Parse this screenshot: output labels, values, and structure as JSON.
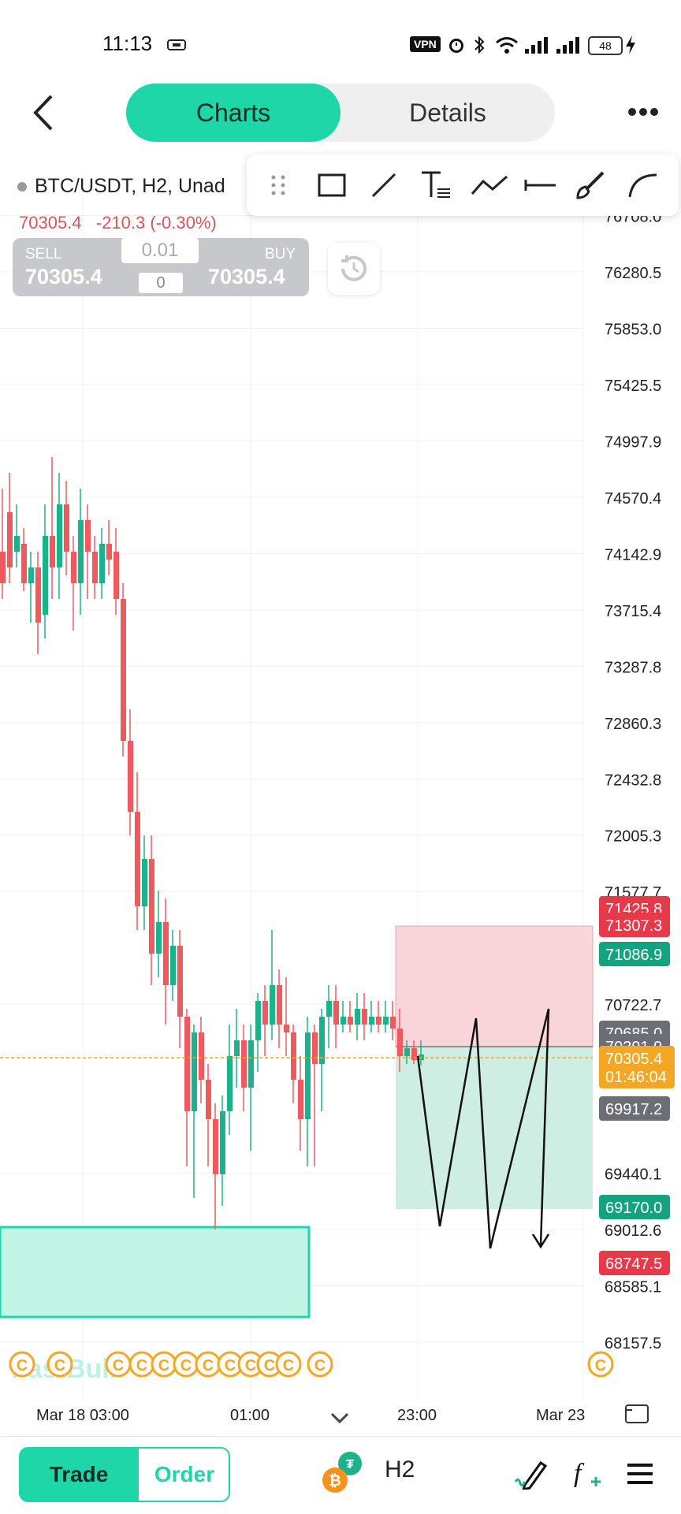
{
  "status_bar": {
    "time": "11:13",
    "vpn": "VPN",
    "battery": "48"
  },
  "header": {
    "tabs": [
      {
        "label": "Charts",
        "active": true
      },
      {
        "label": "Details",
        "active": false
      }
    ],
    "back_icon": "chevron-left-icon",
    "more_icon": "more-dots-icon"
  },
  "chart": {
    "symbol": "BTC/USDT, H2, Unad",
    "last_price": "70305.4",
    "change": "-210.3 (-0.30%)",
    "sell_label": "SELL",
    "sell_price": "70305.4",
    "buy_label": "BUY",
    "buy_price": "70305.4",
    "quantity": "0.01",
    "quantity_zero": "0",
    "watermark": "FastBull",
    "y_ticks": [
      "76708.0",
      "76280.5",
      "75853.0",
      "75425.5",
      "74997.9",
      "74570.4",
      "74142.9",
      "73715.4",
      "73287.8",
      "72860.3",
      "72432.8",
      "72005.3",
      "71577.7",
      "70722.7",
      "69440.1",
      "69012.6",
      "68585.1",
      "68157.5"
    ],
    "price_tags": [
      {
        "label": "71425.8",
        "color": "#e8394a"
      },
      {
        "label": "71307.3",
        "color": "#e8394a"
      },
      {
        "label": "71086.9",
        "color": "#14a37f"
      },
      {
        "label": "70685.0",
        "color": "#6b6e75"
      },
      {
        "label": "70391.9",
        "color": "#6b6e75"
      },
      {
        "label": "70305.4",
        "color": "#f5a623"
      },
      {
        "label": "01:46:04",
        "color": "#f5a623"
      },
      {
        "label": "69917.2",
        "color": "#6b6e75"
      },
      {
        "label": "69170.0",
        "color": "#14a37f"
      },
      {
        "label": "68747.5",
        "color": "#e8394a"
      }
    ],
    "x_labels": [
      "Mar 18 03:00",
      "01:00",
      "23:00",
      "Mar 23"
    ],
    "up_color": "#1db38a",
    "down_color": "#ef5a5f",
    "box_color": "#1ed6a7"
  },
  "draw_toolbar": {
    "tools": [
      "drag-handle-icon",
      "rectangle-icon",
      "trend-line-icon",
      "text-icon",
      "polyline-icon",
      "horizontal-line-icon",
      "brush-icon",
      "arc-icon"
    ]
  },
  "bottom_bar": {
    "trade_label": "Trade",
    "order_label": "Order",
    "timeframe": "H2",
    "icons": [
      "btc-usdt-coin-icon",
      "draw-pen-icon",
      "indicator-fx-icon",
      "menu-icon"
    ]
  }
}
